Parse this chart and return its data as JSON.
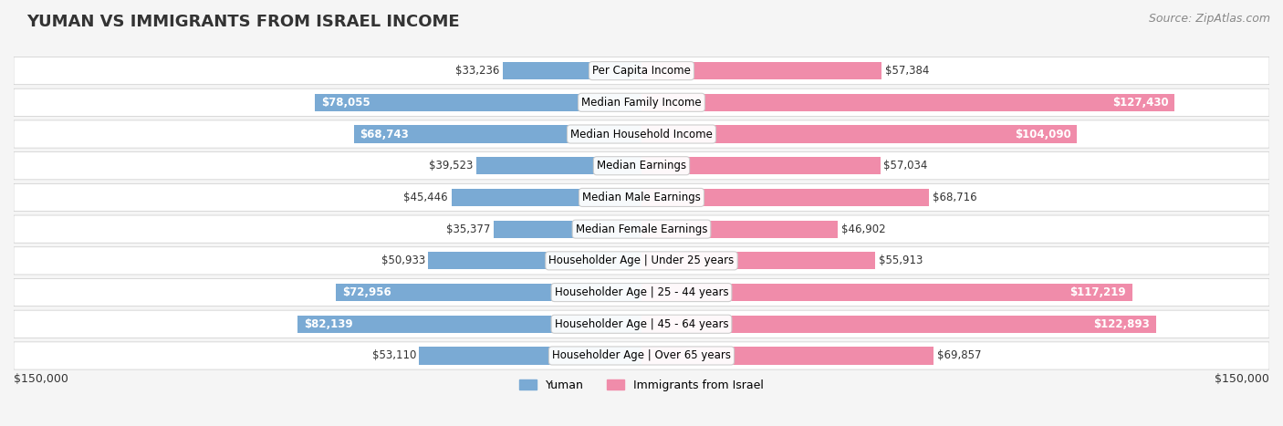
{
  "title": "YUMAN VS IMMIGRANTS FROM ISRAEL INCOME",
  "source": "Source: ZipAtlas.com",
  "categories": [
    "Per Capita Income",
    "Median Family Income",
    "Median Household Income",
    "Median Earnings",
    "Median Male Earnings",
    "Median Female Earnings",
    "Householder Age | Under 25 years",
    "Householder Age | 25 - 44 years",
    "Householder Age | 45 - 64 years",
    "Householder Age | Over 65 years"
  ],
  "yuman_values": [
    33236,
    78055,
    68743,
    39523,
    45446,
    35377,
    50933,
    72956,
    82139,
    53110
  ],
  "israel_values": [
    57384,
    127430,
    104090,
    57034,
    68716,
    46902,
    55913,
    117219,
    122893,
    69857
  ],
  "yuman_color": "#7aaad4",
  "israel_color": "#f08caa",
  "max_value": 150000,
  "xlabel_left": "$150,000",
  "xlabel_right": "$150,000",
  "legend_yuman": "Yuman",
  "legend_israel": "Immigrants from Israel",
  "background_color": "#f5f5f5",
  "row_bg_color": "#ececec",
  "label_box_color": "#ffffff",
  "title_fontsize": 13,
  "source_fontsize": 9,
  "bar_label_fontsize": 8.5,
  "category_fontsize": 8.5
}
